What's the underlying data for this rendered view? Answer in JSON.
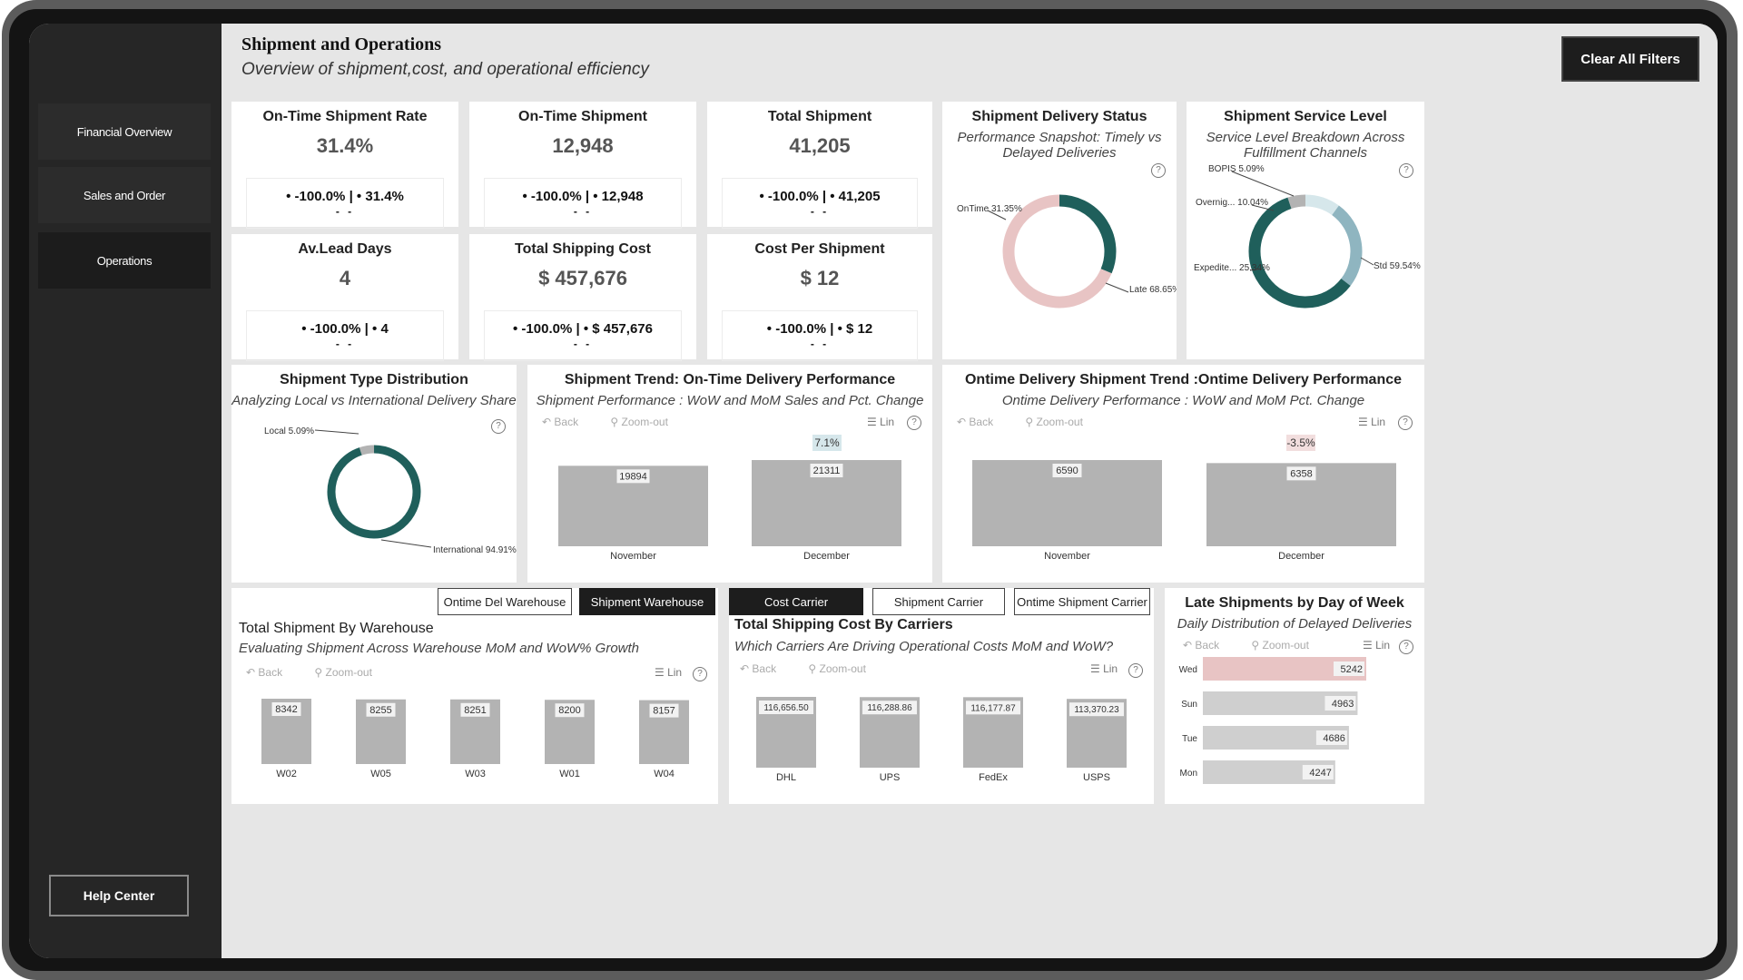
{
  "sidebar": {
    "items": [
      {
        "label": "Financial Overview"
      },
      {
        "label": "Sales and Order"
      },
      {
        "label": "Operations"
      }
    ],
    "help_label": "Help Center"
  },
  "header": {
    "title": "Shipment and Operations",
    "subtitle": "Overview of shipment,cost, and operational efficiency",
    "clear_label": "Clear All Filters"
  },
  "kpis": [
    {
      "title": "On-Time Shipment Rate",
      "value": "31.4%",
      "change": "• -100.0% | • 31.4%",
      "dash": "- -"
    },
    {
      "title": "On-Time Shipment",
      "value": "12,948",
      "change": "• -100.0% | • 12,948",
      "dash": "- -"
    },
    {
      "title": "Total Shipment",
      "value": "41,205",
      "change": "• -100.0% | • 41,205",
      "dash": "- -"
    },
    {
      "title": "Av.Lead Days",
      "value": "4",
      "change": "• -100.0% | • 4",
      "dash": "- -"
    },
    {
      "title": "Total Shipping Cost",
      "value": "$ 457,676",
      "change": "• -100.0% | • $ 457,676",
      "dash": "- -"
    },
    {
      "title": "Cost Per Shipment",
      "value": "$ 12",
      "change": "• -100.0% | • $ 12",
      "dash": "- -"
    }
  ],
  "toolbar": {
    "back": "Back",
    "zoom_out": "Zoom-out",
    "lin": "Lin",
    "help": "?"
  },
  "delivery_status": {
    "title": "Shipment Delivery Status",
    "subtitle": "Performance Snapshot: Timely vs Delayed Deliveries"
  },
  "service_level": {
    "title": "Shipment Service Level",
    "subtitle": "Service Level Breakdown Across Fulfillment Channels"
  },
  "type_distribution": {
    "title": "Shipment Type Distribution",
    "subtitle": "Analyzing Local vs International Delivery Share"
  },
  "trend": {
    "title": "Shipment Trend: On-Time Delivery Performance",
    "subtitle": "Shipment Performance : WoW and MoM Sales and Pct. Change"
  },
  "ontime_trend": {
    "title": "Ontime Delivery Shipment Trend :Ontime Delivery Performance",
    "subtitle": "Ontime Delivery Performance : WoW and MoM Pct. Change"
  },
  "warehouse": {
    "tab1": "Ontime Del Warehouse",
    "tab2": "Shipment Warehouse",
    "title": "Total Shipment By Warehouse",
    "subtitle": "Evaluating Shipment Across Warehouse  MoM and WoW% Growth"
  },
  "carriers": {
    "tab1": "Cost Carrier",
    "tab2": "Shipment Carrier",
    "tab3": "Ontime Shipment Carrier",
    "title": "Total Shipping Cost By Carriers",
    "subtitle": "Which Carriers Are Driving Operational Costs MoM and WoW?"
  },
  "late_days": {
    "title": "Late Shipments by Day of Week",
    "subtitle": "Daily Distribution of Delayed Deliveries"
  },
  "colors": {
    "teal": "#1f5f5b",
    "pink": "#e8c4c4",
    "gray": "#b3b3b3",
    "lightblue": "#8fb5c0",
    "paleblue": "#d6e7eb"
  },
  "chart_data": [
    {
      "type": "pie",
      "id": "delivery_status",
      "labels": [
        "OnTime",
        "Late"
      ],
      "values": [
        31.35,
        68.65
      ],
      "label_text": [
        "OnTime 31.35%",
        "Late 68.65%"
      ]
    },
    {
      "type": "pie",
      "id": "service_level",
      "labels": [
        "BOPIS",
        "Overnig...",
        "Expedite...",
        "Std"
      ],
      "values": [
        5.09,
        10.04,
        25.34,
        59.54
      ],
      "label_text": [
        "BOPIS 5.09%",
        "Overnig... 10.04%",
        "Expedite... 25.34%",
        "Std 59.54%"
      ]
    },
    {
      "type": "pie",
      "id": "type_distribution",
      "labels": [
        "Local",
        "International"
      ],
      "values": [
        5.09,
        94.91
      ],
      "label_text": [
        "Local 5.09%",
        "International 94.91%"
      ]
    },
    {
      "type": "bar",
      "id": "trend",
      "categories": [
        "November",
        "December"
      ],
      "values": [
        19894,
        21311
      ],
      "value_labels": [
        "19894",
        "21311"
      ],
      "change_label": "7.1%"
    },
    {
      "type": "bar",
      "id": "ontime_trend",
      "categories": [
        "November",
        "December"
      ],
      "values": [
        6590,
        6358
      ],
      "value_labels": [
        "6590",
        "6358"
      ],
      "change_label": "-3.5%"
    },
    {
      "type": "bar",
      "id": "warehouse",
      "categories": [
        "W02",
        "W05",
        "W03",
        "W01",
        "W04"
      ],
      "values": [
        8342,
        8255,
        8251,
        8200,
        8157
      ],
      "value_labels": [
        "8342",
        "8255",
        "8251",
        "8200",
        "8157"
      ]
    },
    {
      "type": "bar",
      "id": "carriers",
      "categories": [
        "DHL",
        "UPS",
        "FedEx",
        "USPS"
      ],
      "values": [
        116656.5,
        116288.86,
        116177.87,
        113370.23
      ],
      "value_labels": [
        "116,656.50",
        "116,288.86",
        "116,177.87",
        "113,370.23"
      ]
    },
    {
      "type": "bar",
      "id": "late_days",
      "orientation": "horizontal",
      "categories": [
        "Wed",
        "Sun",
        "Tue",
        "Mon"
      ],
      "values": [
        5242,
        4963,
        4686,
        4247
      ],
      "value_labels": [
        "5242",
        "4963",
        "4686",
        "4247"
      ]
    }
  ]
}
